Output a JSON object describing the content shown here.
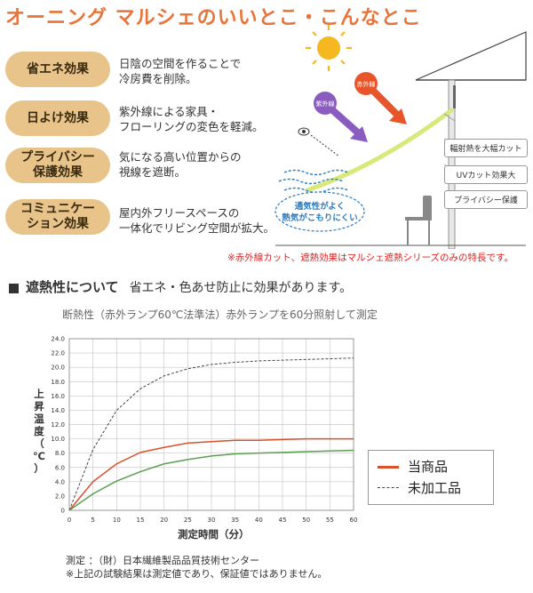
{
  "header": {
    "title": "オーニング マルシェのいいとこ・こんなとこ"
  },
  "benefits": [
    {
      "label": [
        "省エネ効果"
      ],
      "desc": [
        "日陰の空間を作ることで",
        "冷房費を削除。"
      ]
    },
    {
      "label": [
        "日よけ効果"
      ],
      "desc": [
        "紫外線による家具・",
        "フローリングの変色を軽減。"
      ]
    },
    {
      "label": [
        "プライバシー",
        "保護効果"
      ],
      "desc": [
        "気になる高い位置からの",
        "視線を遮断。"
      ]
    },
    {
      "label": [
        "コミュニケー",
        "ション効果"
      ],
      "desc": [
        "屋内外フリースペースの",
        "一体化でリビング空間が拡大。"
      ]
    }
  ],
  "illustration": {
    "uv_label": "紫外線",
    "ir_label": "赤外線",
    "callouts": [
      "輻射熱を大幅カット",
      "UVカット効果大",
      "プライバシー保護"
    ],
    "bubble": [
      "通気性がよく",
      "熱気がこもりにくい"
    ],
    "colors": {
      "sun": "#f5b820",
      "uv": "#8a5cc0",
      "ir": "#e8552a",
      "awning": "#d8e87a",
      "bubble": "#2a7ac0"
    }
  },
  "footnote_red": "※赤外線カット、遮熱効果はマルシェ遮熱シリーズのみの特長です。",
  "section": {
    "heading": "遮熱性について",
    "subheading": "省エネ・色あせ防止に効果があります。"
  },
  "chart_data": {
    "type": "line",
    "title": "断熱性（赤外ランプ60℃法準法）赤外ランプを60分照射して測定",
    "xlabel": "測定時間（分）",
    "ylabel": [
      "上",
      "昇",
      "温",
      "度",
      "（",
      "℃",
      "）"
    ],
    "x": [
      0,
      5,
      10,
      15,
      20,
      25,
      30,
      35,
      40,
      45,
      50,
      55,
      60
    ],
    "xlim": [
      0,
      60
    ],
    "ylim": [
      0,
      24
    ],
    "xticks": [
      "0",
      "5",
      "10",
      "15",
      "20",
      "25",
      "30",
      "35",
      "40",
      "45",
      "50",
      "55",
      "60"
    ],
    "yticks": [
      "0",
      "2.0",
      "4.0",
      "6.0",
      "8.0",
      "10.0",
      "12.0",
      "14.0",
      "16.0",
      "18.0",
      "20.0",
      "22.0",
      "24.0"
    ],
    "grid": true,
    "legend_position": "right",
    "series": [
      {
        "name": "当商品",
        "color": "#d9502a",
        "dash": false,
        "values": [
          0,
          4.0,
          6.5,
          8.1,
          8.8,
          9.4,
          9.6,
          9.8,
          9.8,
          9.9,
          10.0,
          10.0,
          10.0
        ]
      },
      {
        "name": "未加工品",
        "color": "#444444",
        "dash": true,
        "values": [
          0,
          8.5,
          14.0,
          17.0,
          18.8,
          19.8,
          20.4,
          20.7,
          20.9,
          21.0,
          21.1,
          21.2,
          21.3
        ]
      },
      {
        "name": "",
        "color": "#5aa050",
        "dash": false,
        "values": [
          0,
          2.3,
          4.1,
          5.4,
          6.5,
          7.1,
          7.6,
          7.9,
          8.0,
          8.1,
          8.2,
          8.3,
          8.4
        ]
      }
    ]
  },
  "notes": [
    "測定 ：（財）日本繊維製品品質技術センター",
    "※上記の試験結果は測定値であり、保証値ではありません。"
  ]
}
